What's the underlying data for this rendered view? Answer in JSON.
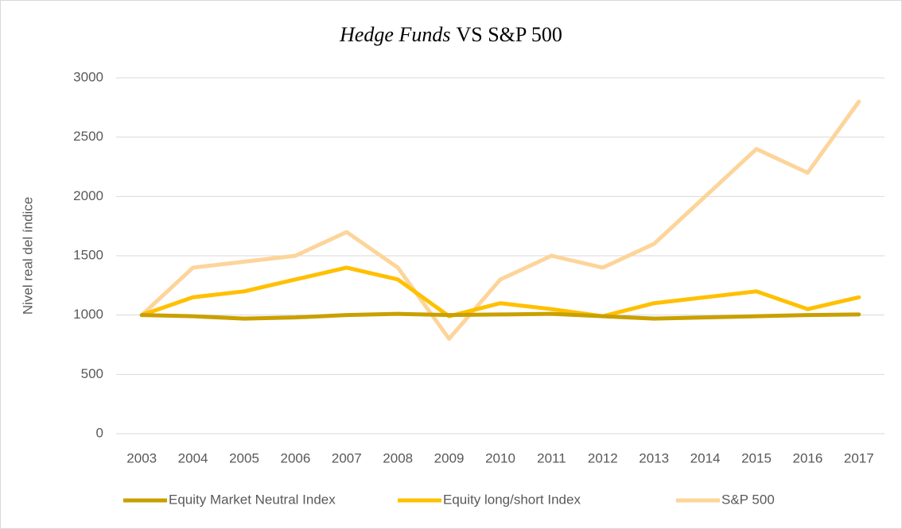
{
  "chart_data": {
    "type": "line",
    "title": {
      "italic": "Hedge Funds",
      "text": "VS S&P 500"
    },
    "y_label": "Nivel real del índice",
    "categories": [
      "2003",
      "2004",
      "2005",
      "2006",
      "2007",
      "2008",
      "2009",
      "2010",
      "2011",
      "2012",
      "2013",
      "2014",
      "2015",
      "2016",
      "2017"
    ],
    "series": [
      {
        "name": "Equity Market Neutral Index",
        "color": "#c9a000",
        "values": [
          1000,
          990,
          970,
          980,
          1000,
          1010,
          1000,
          1005,
          1010,
          990,
          970,
          980,
          990,
          1000,
          1005
        ]
      },
      {
        "name": "Equity long/short Index",
        "color": "#ffc000",
        "values": [
          1000,
          1150,
          1200,
          1300,
          1400,
          1300,
          990,
          1100,
          1050,
          990,
          1100,
          1150,
          1200,
          1050,
          1150
        ]
      },
      {
        "name": "S&P 500",
        "color": "#fdd49a",
        "values": [
          1000,
          1400,
          1450,
          1500,
          1700,
          1400,
          800,
          1300,
          1500,
          1400,
          1600,
          2000,
          2400,
          2200,
          2800
        ]
      }
    ],
    "ylim": [
      0,
      3000
    ],
    "yticks": [
      0,
      500,
      1000,
      1500,
      2000,
      2500,
      3000
    ],
    "grid": true,
    "legend": "bottom"
  }
}
